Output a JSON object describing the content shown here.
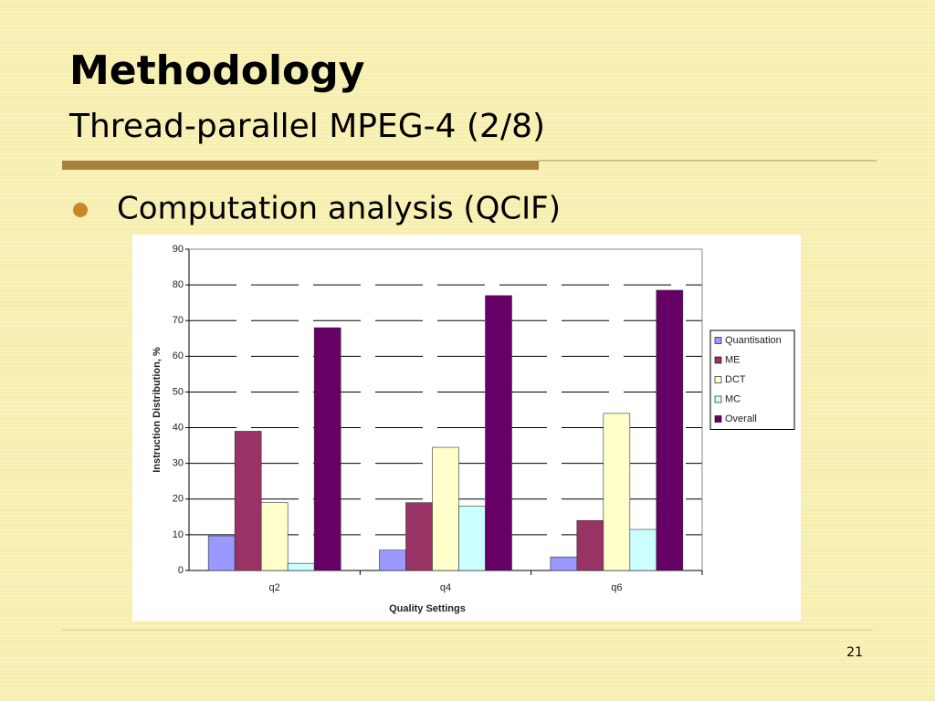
{
  "slide": {
    "title": "Methodology",
    "subtitle": "Thread-parallel MPEG-4 (2/8)",
    "bullet": "Computation analysis (QCIF)",
    "page_number": "21"
  },
  "chart_data": {
    "type": "bar",
    "categories": [
      "q2",
      "q4",
      "q6"
    ],
    "x_label": "Quality Settings",
    "y_label": "Instruction Distribution, %",
    "series": [
      {
        "name": "Quantisation",
        "color": "#9999ff",
        "values": [
          9.7,
          5.7,
          3.8
        ]
      },
      {
        "name": "ME",
        "color": "#993366",
        "values": [
          39,
          19,
          14
        ]
      },
      {
        "name": "DCT",
        "color": "#ffffcc",
        "values": [
          19,
          34.5,
          44
        ]
      },
      {
        "name": "MC",
        "color": "#ccffff",
        "values": [
          2,
          18,
          11.5
        ]
      },
      {
        "name": "Overall",
        "color": "#660066",
        "values": [
          68,
          77,
          78.5
        ]
      }
    ],
    "ylim": [
      0,
      90
    ],
    "yticks": [
      0,
      10,
      20,
      30,
      40,
      50,
      60,
      70,
      80,
      90
    ],
    "grid": true,
    "legend": "right"
  }
}
